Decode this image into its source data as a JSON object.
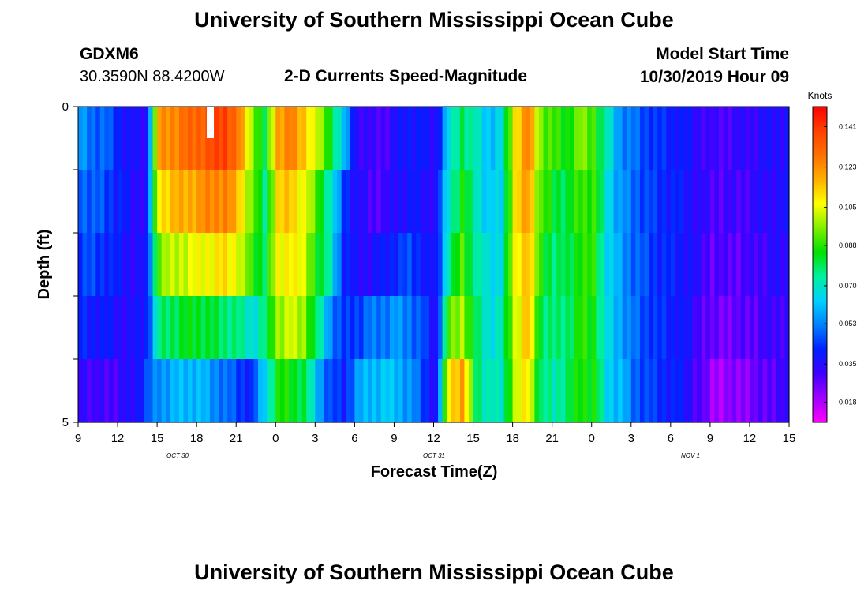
{
  "header": {
    "title": "University of Southern Mississippi Ocean Cube",
    "station": "GDXM6",
    "coords": "30.3590N 88.4200W",
    "subtitle": "2-D Currents Speed-Magnitude",
    "model_label": "Model Start Time",
    "model_time": "10/30/2019 Hour 09"
  },
  "footer": {
    "title": "University of Southern Mississippi Ocean Cube"
  },
  "chart_data": {
    "type": "heatmap",
    "xlabel": "Forecast Time(Z)",
    "ylabel": "Depth (ft)",
    "x_ticks": [
      "9",
      "12",
      "15",
      "18",
      "21",
      "0",
      "3",
      "6",
      "9",
      "12",
      "15",
      "18",
      "21",
      "0",
      "3",
      "6",
      "9",
      "12",
      "15"
    ],
    "date_labels": [
      "OCT 30",
      "OCT 31",
      "NOV 1"
    ],
    "y_ticks": [
      "0",
      "5"
    ],
    "ylim": [
      0,
      5
    ],
    "colorbar": {
      "label": "Knots",
      "ticks": [
        "0.141",
        "0.123",
        "0.105",
        "0.088",
        "0.070",
        "0.053",
        "0.035",
        "0.018"
      ],
      "range": [
        0.009,
        0.15
      ],
      "colors": [
        "#ff00ff",
        "#a000ff",
        "#4000ff",
        "#0020ff",
        "#0080ff",
        "#00d0ff",
        "#00f0a0",
        "#00e000",
        "#80f000",
        "#ffff00",
        "#ffb000",
        "#ff7000",
        "#ff4000",
        "#ff0000"
      ]
    },
    "columns_per_hour": 3,
    "hours": 54,
    "depth_layers": 5,
    "speed_profile_by_hour": [
      [
        0.055,
        0.05,
        0.045,
        0.04,
        0.035
      ],
      [
        0.05,
        0.048,
        0.045,
        0.04,
        0.03
      ],
      [
        0.048,
        0.045,
        0.042,
        0.038,
        0.03
      ],
      [
        0.04,
        0.04,
        0.038,
        0.035,
        0.032
      ],
      [
        0.035,
        0.035,
        0.035,
        0.035,
        0.035
      ],
      [
        0.035,
        0.035,
        0.036,
        0.04,
        0.045
      ],
      [
        0.12,
        0.11,
        0.095,
        0.075,
        0.055
      ],
      [
        0.125,
        0.115,
        0.1,
        0.08,
        0.058
      ],
      [
        0.128,
        0.118,
        0.103,
        0.082,
        0.06
      ],
      [
        0.132,
        0.12,
        0.105,
        0.083,
        0.06
      ],
      [
        0.135,
        0.125,
        0.108,
        0.08,
        0.055
      ],
      [
        0.14,
        0.125,
        0.11,
        0.078,
        0.05
      ],
      [
        0.125,
        0.115,
        0.105,
        0.075,
        0.045
      ],
      [
        0.1,
        0.095,
        0.088,
        0.068,
        0.04
      ],
      [
        0.078,
        0.075,
        0.08,
        0.075,
        0.065
      ],
      [
        0.12,
        0.11,
        0.105,
        0.098,
        0.085
      ],
      [
        0.125,
        0.115,
        0.11,
        0.102,
        0.085
      ],
      [
        0.115,
        0.105,
        0.102,
        0.098,
        0.08
      ],
      [
        0.1,
        0.09,
        0.085,
        0.075,
        0.06
      ],
      [
        0.085,
        0.07,
        0.07,
        0.055,
        0.045
      ],
      [
        0.06,
        0.045,
        0.042,
        0.042,
        0.04
      ],
      [
        0.035,
        0.035,
        0.035,
        0.045,
        0.055
      ],
      [
        0.03,
        0.03,
        0.035,
        0.05,
        0.06
      ],
      [
        0.03,
        0.03,
        0.038,
        0.052,
        0.062
      ],
      [
        0.035,
        0.035,
        0.042,
        0.055,
        0.06
      ],
      [
        0.04,
        0.038,
        0.045,
        0.052,
        0.055
      ],
      [
        0.038,
        0.036,
        0.04,
        0.045,
        0.045
      ],
      [
        0.035,
        0.035,
        0.035,
        0.035,
        0.035
      ],
      [
        0.065,
        0.07,
        0.075,
        0.09,
        0.11
      ],
      [
        0.08,
        0.085,
        0.09,
        0.1,
        0.12
      ],
      [
        0.07,
        0.072,
        0.075,
        0.078,
        0.08
      ],
      [
        0.062,
        0.062,
        0.065,
        0.068,
        0.07
      ],
      [
        0.065,
        0.065,
        0.068,
        0.07,
        0.07
      ],
      [
        0.11,
        0.108,
        0.105,
        0.103,
        0.1
      ],
      [
        0.125,
        0.122,
        0.118,
        0.115,
        0.11
      ],
      [
        0.095,
        0.09,
        0.085,
        0.08,
        0.075
      ],
      [
        0.088,
        0.082,
        0.078,
        0.075,
        0.072
      ],
      [
        0.085,
        0.08,
        0.078,
        0.078,
        0.078
      ],
      [
        0.095,
        0.09,
        0.088,
        0.087,
        0.087
      ],
      [
        0.09,
        0.088,
        0.086,
        0.085,
        0.085
      ],
      [
        0.07,
        0.068,
        0.066,
        0.065,
        0.065
      ],
      [
        0.055,
        0.055,
        0.056,
        0.058,
        0.06
      ],
      [
        0.05,
        0.05,
        0.05,
        0.05,
        0.05
      ],
      [
        0.045,
        0.045,
        0.045,
        0.045,
        0.045
      ],
      [
        0.042,
        0.042,
        0.042,
        0.042,
        0.042
      ],
      [
        0.04,
        0.04,
        0.04,
        0.04,
        0.04
      ],
      [
        0.038,
        0.038,
        0.038,
        0.037,
        0.037
      ],
      [
        0.033,
        0.033,
        0.032,
        0.03,
        0.028
      ],
      [
        0.03,
        0.03,
        0.028,
        0.025,
        0.02
      ],
      [
        0.03,
        0.03,
        0.028,
        0.025,
        0.02
      ],
      [
        0.032,
        0.03,
        0.028,
        0.026,
        0.022
      ],
      [
        0.033,
        0.032,
        0.03,
        0.028,
        0.024
      ],
      [
        0.035,
        0.034,
        0.032,
        0.03,
        0.027
      ],
      [
        0.036,
        0.035,
        0.034,
        0.032,
        0.03
      ]
    ]
  }
}
